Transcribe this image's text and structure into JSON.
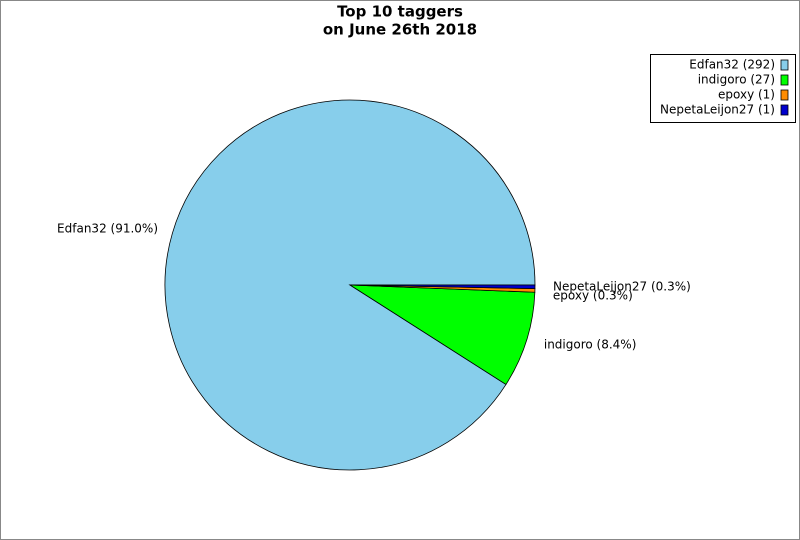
{
  "chart_data": {
    "type": "pie",
    "title": "Top 10 taggers",
    "subtitle": "on June 26th 2018",
    "values": [
      292,
      27,
      1,
      1
    ],
    "value_labels": [
      "Edfan32 (91.0%)",
      "indigoro (8.4%)",
      "epoxy (0.3%)",
      "NepetaLeijon27 (0.3%)"
    ],
    "legend_labels": [
      "Edfan32 (292)",
      "indigoro (27)",
      "epoxy (1)",
      "NepetaLeijon27 (1)"
    ],
    "colors": [
      "#87ceeb",
      "#00ff00",
      "#ff8c00",
      "#0000cd"
    ],
    "legend": "top-right"
  }
}
